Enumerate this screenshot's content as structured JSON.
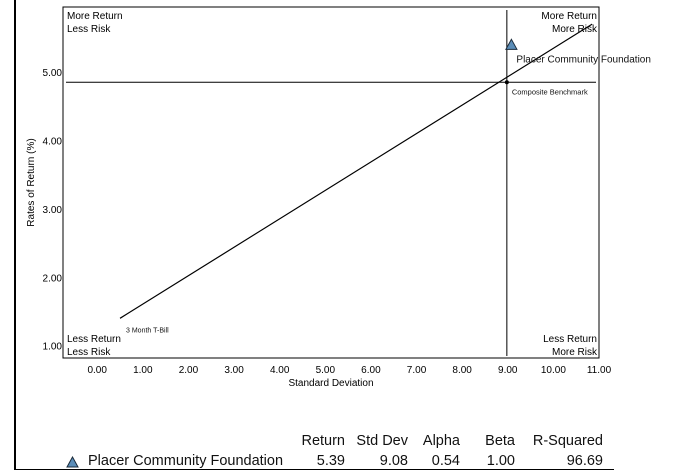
{
  "chart_data": {
    "type": "scatter",
    "xlabel": "Standard Deviation",
    "ylabel": "Rates of Return (%)",
    "xlim": [
      -0.75,
      11.0
    ],
    "ylim": [
      0.82,
      5.95
    ],
    "xticks": [
      0,
      1,
      2,
      3,
      4,
      5,
      6,
      7,
      8,
      9,
      10,
      11
    ],
    "xtick_labels": [
      "0.00",
      "1.00",
      "2.00",
      "3.00",
      "4.00",
      "5.00",
      "6.00",
      "7.00",
      "8.00",
      "9.00",
      "10.00",
      "11.00"
    ],
    "yticks": [
      1,
      2,
      3,
      4,
      5
    ],
    "ytick_labels": [
      "1.00",
      "2.00",
      "3.00",
      "4.00",
      "5.00"
    ],
    "quadrants": {
      "top_left": [
        "More Return",
        "Less Risk"
      ],
      "top_right": [
        "More Return",
        "More Risk"
      ],
      "bottom_left": [
        "Less Return",
        "Less Risk"
      ],
      "bottom_right": [
        "Less Return",
        "More Risk"
      ]
    },
    "capital_market_line": {
      "start": {
        "x": 0.5,
        "y": 1.4,
        "label": "3 Month T-Bill"
      },
      "end": {
        "x": 10.85,
        "y": 5.7
      }
    },
    "benchmark": {
      "x": 8.98,
      "y": 4.85,
      "label": "Composite Benchmark"
    },
    "crosshair": {
      "x": 8.98,
      "y": 4.85
    },
    "points": [
      {
        "name": "Placer Community Foundation",
        "x": 9.08,
        "y": 5.39,
        "marker": "triangle",
        "color": "#5b8db8"
      }
    ]
  },
  "stats_table": {
    "headers": [
      "Return",
      "Std Dev",
      "Alpha",
      "Beta",
      "R-Squared"
    ],
    "rows": [
      {
        "name": "Placer Community Foundation",
        "marker_color": "#5b8db8",
        "values": [
          "5.39",
          "9.08",
          "0.54",
          "1.00",
          "96.69"
        ]
      }
    ]
  }
}
